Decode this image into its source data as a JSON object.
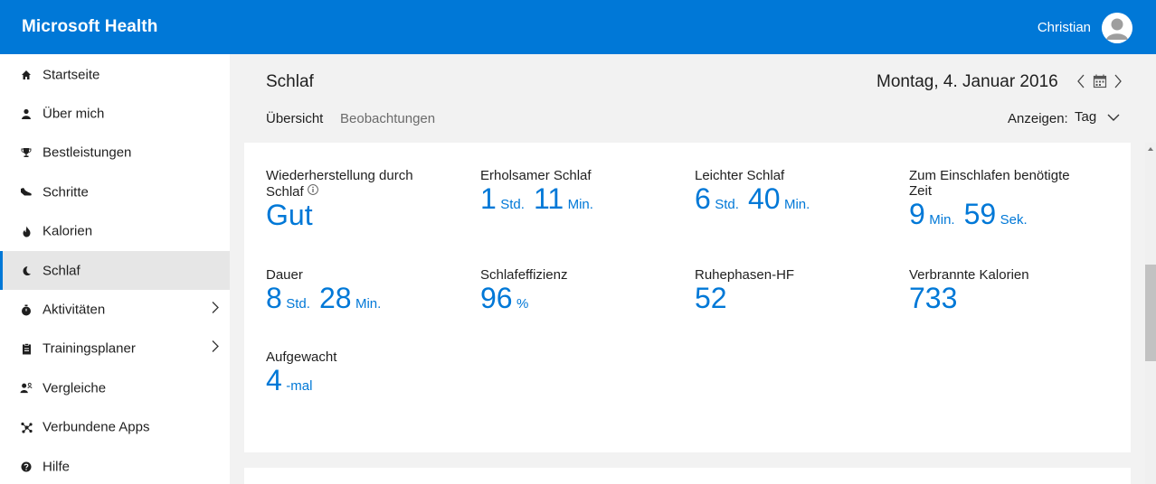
{
  "header": {
    "brand": "Microsoft Health",
    "user_name": "Christian"
  },
  "sidebar": {
    "items": [
      {
        "label": "Startseite",
        "icon": "home-icon"
      },
      {
        "label": "Über mich",
        "icon": "person-icon"
      },
      {
        "label": "Bestleistungen",
        "icon": "trophy-icon"
      },
      {
        "label": "Schritte",
        "icon": "shoe-icon"
      },
      {
        "label": "Kalorien",
        "icon": "flame-icon"
      },
      {
        "label": "Schlaf",
        "icon": "moon-icon",
        "active": true
      },
      {
        "label": "Aktivitäten",
        "icon": "stopwatch-icon",
        "has_children": true
      },
      {
        "label": "Trainingsplaner",
        "icon": "clipboard-icon",
        "has_children": true
      },
      {
        "label": "Vergleiche",
        "icon": "compare-icon"
      },
      {
        "label": "Verbundene Apps",
        "icon": "connected-apps-icon"
      },
      {
        "label": "Hilfe",
        "icon": "help-icon"
      }
    ]
  },
  "main": {
    "title": "Schlaf",
    "date": "Montag, 4. Januar 2016",
    "tabs": [
      {
        "label": "Übersicht",
        "selected": true
      },
      {
        "label": "Beobachtungen"
      }
    ],
    "show_label": "Anzeigen:",
    "show_value": "Tag"
  },
  "metrics": {
    "recovery": {
      "label_line1": "Wiederherstellung durch",
      "label_line2": "Schlaf",
      "value": "Gut"
    },
    "restful": {
      "label": "Erholsamer Schlaf",
      "v1": "1",
      "u1": "Std.",
      "v2": "11",
      "u2": "Min."
    },
    "light": {
      "label": "Leichter Schlaf",
      "v1": "6",
      "u1": "Std.",
      "v2": "40",
      "u2": "Min."
    },
    "fall_asleep": {
      "label_line1": "Zum Einschlafen benötigte",
      "label_line2": "Zeit",
      "v1": "9",
      "u1": "Min.",
      "v2": "59",
      "u2": "Sek."
    },
    "duration": {
      "label": "Dauer",
      "v1": "8",
      "u1": "Std.",
      "v2": "28",
      "u2": "Min."
    },
    "efficiency": {
      "label": "Schlafeffizienz",
      "v1": "96",
      "u1": "%"
    },
    "resting_hr": {
      "label": "Ruhephasen-HF",
      "value": "52"
    },
    "calories": {
      "label": "Verbrannte Kalorien",
      "value": "733"
    },
    "woke_up": {
      "label": "Aufgewacht",
      "v1": "4",
      "u1": "-mal"
    }
  },
  "colors": {
    "accent": "#0078d7",
    "sidebar_active": "#e6e6e6",
    "background": "#f2f2f2"
  }
}
